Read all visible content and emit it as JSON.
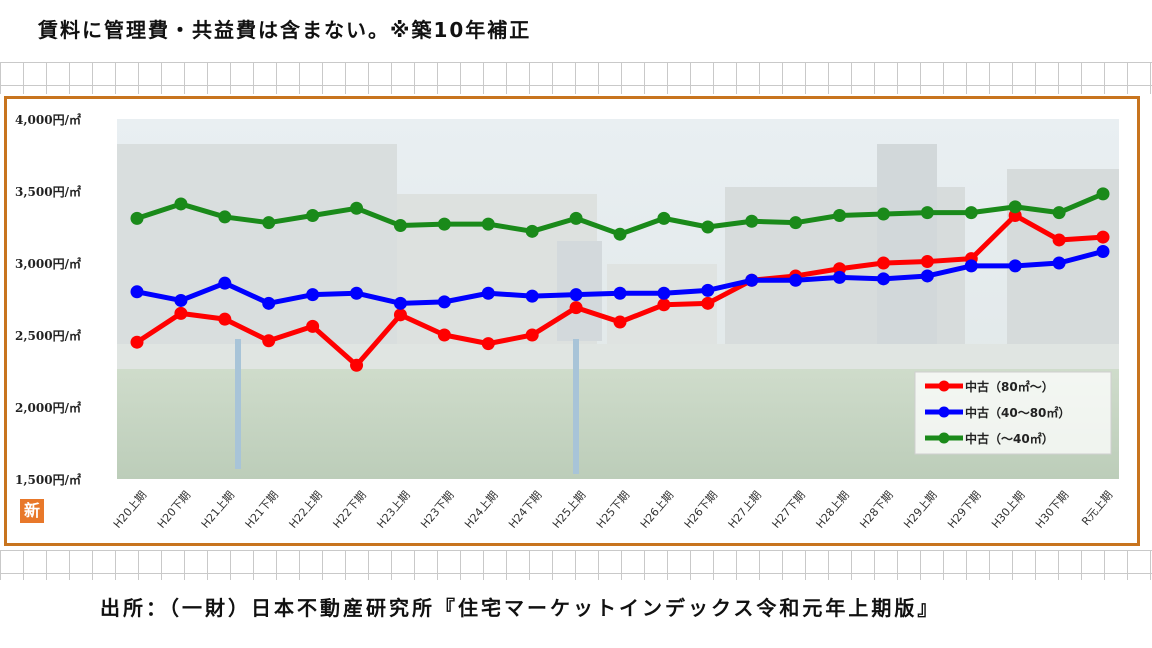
{
  "header": {
    "note": "賃料に管理費・共益費は含まない。※築10年補正"
  },
  "footer": {
    "source": "出所：（一財）日本不動産研究所『住宅マーケットインデックス令和元年上期版』"
  },
  "badge": {
    "label": "新"
  },
  "colors": {
    "frame": "#c8741e",
    "red": "#ff0000",
    "blue": "#0000ff",
    "green": "#1a8a1a"
  },
  "chart_data": {
    "type": "line",
    "title": "",
    "xlabel": "",
    "ylabel": "",
    "ylim": [
      1500,
      4000
    ],
    "yticks": [
      {
        "value": 4000,
        "label": "4,000円/㎡"
      },
      {
        "value": 3500,
        "label": "3,500円/㎡"
      },
      {
        "value": 3000,
        "label": "3,000円/㎡"
      },
      {
        "value": 2500,
        "label": "2,500円/㎡"
      },
      {
        "value": 2000,
        "label": "2,000円/㎡"
      },
      {
        "value": 1500,
        "label": "1,500円/㎡"
      }
    ],
    "categories": [
      "H20上期",
      "H20下期",
      "H21上期",
      "H21下期",
      "H22上期",
      "H22下期",
      "H23上期",
      "H23下期",
      "H24上期",
      "H24下期",
      "H25上期",
      "H25下期",
      "H26上期",
      "H26下期",
      "H27上期",
      "H27下期",
      "H28上期",
      "H28下期",
      "H29上期",
      "H29下期",
      "H30上期",
      "H30下期",
      "R元上期"
    ],
    "legend_position": "bottom-right",
    "series": [
      {
        "name": "中古（80㎡～）",
        "color": "#ff0000",
        "values": [
          2450,
          2650,
          2610,
          2460,
          2560,
          2290,
          2640,
          2500,
          2440,
          2500,
          2690,
          2590,
          2710,
          2720,
          2880,
          2910,
          2960,
          3000,
          3010,
          3030,
          3330,
          3160,
          3180
        ]
      },
      {
        "name": "中古（40～80㎡）",
        "color": "#0000ff",
        "values": [
          2800,
          2740,
          2860,
          2720,
          2780,
          2790,
          2720,
          2730,
          2790,
          2770,
          2780,
          2790,
          2790,
          2810,
          2880,
          2880,
          2900,
          2890,
          2910,
          2980,
          2980,
          3000,
          3080
        ]
      },
      {
        "name": "中古（～40㎡）",
        "color": "#1a8a1a",
        "values": [
          3310,
          3410,
          3320,
          3280,
          3330,
          3380,
          3260,
          3270,
          3270,
          3220,
          3310,
          3200,
          3310,
          3250,
          3290,
          3280,
          3330,
          3340,
          3350,
          3350,
          3390,
          3350,
          3480
        ]
      }
    ]
  }
}
